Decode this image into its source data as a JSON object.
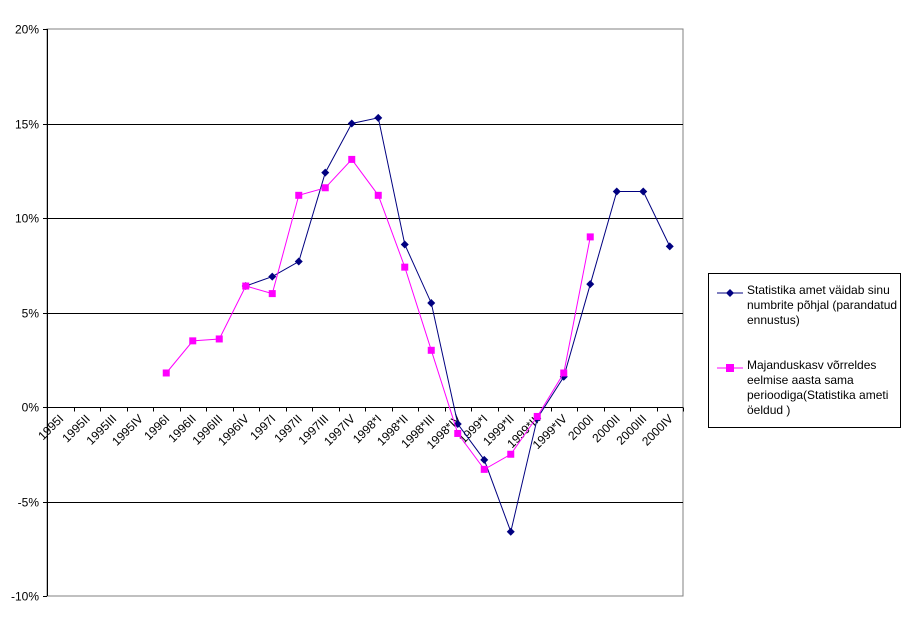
{
  "chart_data": {
    "type": "line",
    "categories": [
      "1995I",
      "1995II",
      "1995III",
      "1995IV",
      "1996I",
      "1996II",
      "1996III",
      "1996IV",
      "1997I",
      "1997II",
      "1997III",
      "1997IV",
      "1998*I",
      "1998*II",
      "1998*III",
      "1998*IV",
      "1999*I",
      "1999*II",
      "1999*III",
      "1999*IV",
      "2000I",
      "2000II",
      "2000III",
      "2000IV"
    ],
    "ylim": [
      -0.1,
      0.2
    ],
    "yticks": [
      -0.1,
      -0.05,
      0,
      0.05,
      0.1,
      0.15,
      0.2
    ],
    "ytick_labels": [
      "-10%",
      "-5%",
      "0%",
      "5%",
      "10%",
      "15%",
      "20%"
    ],
    "grid": "horizontal",
    "legend_position": "right",
    "series": [
      {
        "name": "Statistika amet väidab sinu numbrite põhjal (parandatud ennustus)",
        "color": "#000080",
        "marker": "diamond",
        "values": [
          null,
          null,
          null,
          null,
          null,
          null,
          null,
          0.064,
          0.069,
          0.077,
          0.124,
          0.15,
          0.153,
          0.086,
          0.055,
          -0.009,
          -0.028,
          -0.066,
          -0.006,
          0.016,
          0.065,
          0.114,
          0.114,
          0.085
        ]
      },
      {
        "name": "Majanduskasv võrreldes eelmise aasta sama perioodiga(Statistika ameti öeldud )",
        "color": "#ff00ff",
        "marker": "square",
        "values": [
          null,
          null,
          null,
          null,
          0.018,
          0.035,
          0.036,
          0.064,
          0.06,
          0.112,
          0.116,
          0.131,
          0.112,
          0.074,
          0.03,
          -0.014,
          -0.033,
          -0.025,
          -0.005,
          0.018,
          0.09,
          null,
          null,
          null
        ]
      }
    ]
  }
}
